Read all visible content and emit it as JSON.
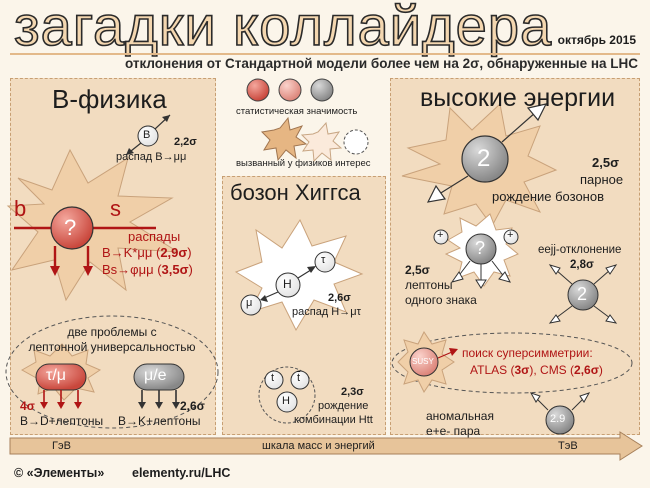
{
  "header": {
    "title": "загадки коллайдера",
    "date": "октябрь 2015",
    "subtitle": "отклонения от Стандартной модели более чем на 2σ, обнаруженные на LHC"
  },
  "legend": {
    "significance": "статистическая значимость",
    "interest": "вызванный у физиков интерес"
  },
  "bphysics": {
    "title": "B-физика",
    "b_label": "B",
    "bmumu_sigma": "2,2σ",
    "bmumu_text": "распад B→μμ",
    "quark_b": "b",
    "quark_s": "s",
    "q_mark": "?",
    "decays_title": "распады",
    "decay1_pre": "B→K*μμ (",
    "decay1_sig": "2,9σ",
    "decay1_post": ")",
    "decay2_pre": "Bs→φμμ (",
    "decay2_sig": "3,5σ",
    "decay2_post": ")",
    "lepton_line1": "две проблемы с",
    "lepton_line2": "лептонной универсальностью",
    "tau_mu": "τ/μ",
    "mu_e": "μ/e",
    "tau_sigma": "4σ",
    "tau_text": "B→D+лептоны",
    "mue_sigma": "2,6σ",
    "mue_text": "B→K+лептоны"
  },
  "higgs": {
    "title": "бозон Хиггса",
    "tau": "τ",
    "h": "H",
    "mu": "μ",
    "mutau_sigma": "2,6σ",
    "mutau_text": "распад H→μτ",
    "t1": "t",
    "t2": "t",
    "h2": "H",
    "htt_sigma": "2,3σ",
    "htt_line1": "рождение",
    "htt_line2": "комбинации Htt"
  },
  "high_energy": {
    "title": "высокие энергии",
    "boson_num": "2",
    "boson_sigma": "2,5σ",
    "boson_line1": "парное",
    "boson_line2": "рождение бозонов",
    "plus1": "+",
    "plus2": "+",
    "q": "?",
    "same_sigma": "2,5σ",
    "same_line1": "лептоны",
    "same_line2": "одного знака",
    "eejj_title": "eejj-отклонение",
    "eejj_sigma": "2,8σ",
    "eejj_num": "2",
    "susy": "SUSY",
    "susy_line1": "поиск суперсимметрии:",
    "susy_pre": "ATLAS (",
    "susy_atlas": "3σ",
    "susy_mid": "), CMS (",
    "susy_cms": "2,6σ",
    "susy_post": ")",
    "ee_line1": "аномальная",
    "ee_line2": "e+e- пара",
    "ee_num": "2.9"
  },
  "scale": {
    "left": "ГэВ",
    "middle": "шкала масс и энергий",
    "right": "ТэВ"
  },
  "footer": {
    "copyright": "© «Элементы»",
    "url": "elementy.ru/LHC"
  },
  "colors": {
    "red_ball": "#d9635a",
    "pink_ball": "#e89c93",
    "gray_ball": "#9a9a9a",
    "panel": "#f2dcc0",
    "star": "#f0cfa8",
    "accent_red": "#b01515"
  }
}
